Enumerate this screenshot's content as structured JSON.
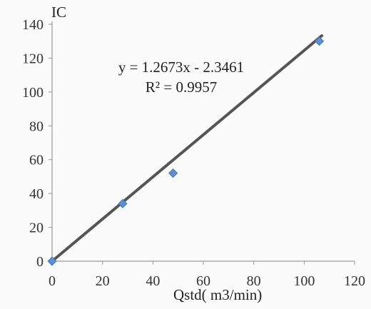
{
  "chart_data": {
    "type": "scatter",
    "title": "",
    "xlabel": "Qstd( m3/min)",
    "ylabel": "IC",
    "xlim": [
      0,
      120
    ],
    "ylim": [
      0,
      140
    ],
    "x_ticks": [
      "0",
      "20",
      "40",
      "60",
      "80",
      "100",
      "120"
    ],
    "y_ticks": [
      "0",
      "20",
      "40",
      "60",
      "80",
      "100",
      "120",
      "140"
    ],
    "grid": false,
    "legend": "none",
    "series": [
      {
        "x": [
          0,
          28,
          48,
          106
        ],
        "y": [
          0,
          34,
          52,
          130
        ],
        "marker": "diamond",
        "color": "#5b8fd0"
      }
    ],
    "trendline": {
      "type": "linear",
      "slope": 1.2673,
      "intercept": -2.3461,
      "color": "#555555",
      "equation": "y = 1.2673x - 2.3461",
      "r_squared": "R² = 0.9957"
    }
  }
}
